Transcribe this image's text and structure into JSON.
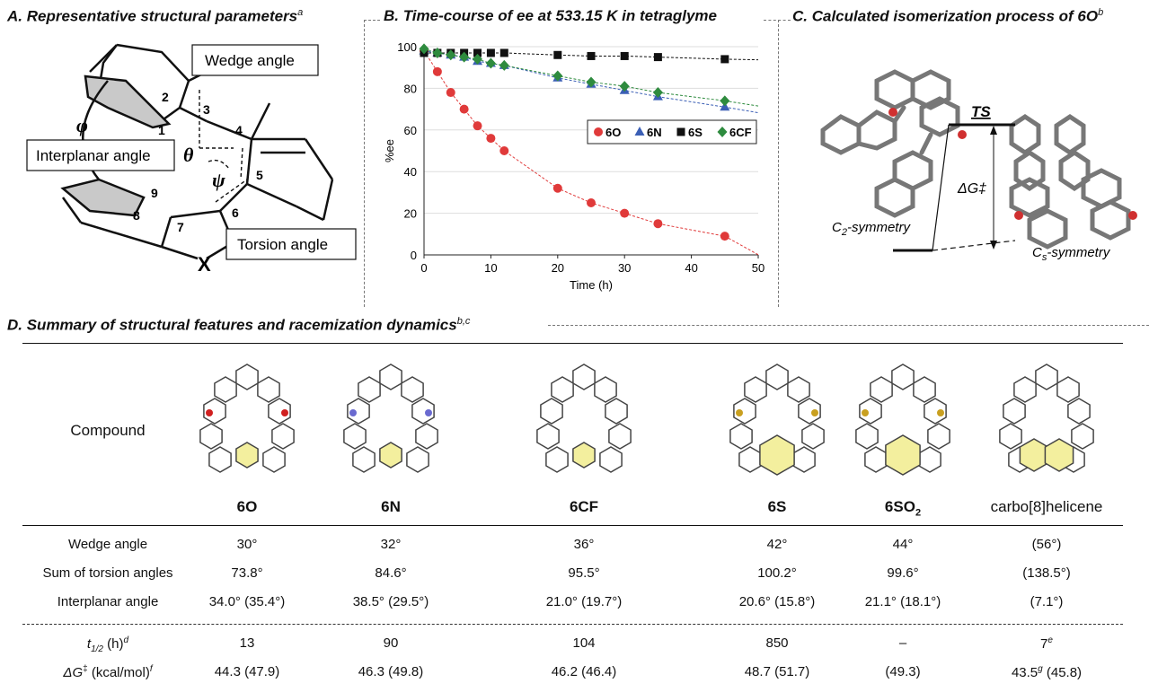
{
  "panels": {
    "A": {
      "title": "A. Representative structural parameters",
      "sup": "a",
      "labels": {
        "wedge": "Wedge angle",
        "interplanar": "Interplanar angle",
        "torsion": "Torsion angle"
      },
      "atoms": [
        "1",
        "2",
        "3",
        "4",
        "5",
        "6",
        "7",
        "8",
        "9"
      ],
      "greek": {
        "phi": "φ",
        "theta": "θ",
        "psi": "ψ"
      },
      "hetero": "X"
    },
    "B": {
      "title": "B. Time-course of ee at 533.15 K in tetraglyme"
    },
    "C": {
      "title": "C. Calculated isomerization process of 6O",
      "sup": "b",
      "ts": "TS",
      "dg": "ΔG‡",
      "c2": "C",
      "c2sub": "2",
      "c2suffix": "-symmetry",
      "cs": "C",
      "cssub": "s",
      "cssuffix": "-symmetry"
    },
    "D": {
      "title": "D. Summary of structural features and racemization dynamics",
      "sup": "b,c"
    }
  },
  "chart_data": {
    "type": "scatter",
    "title": "",
    "xlabel": "Time (h)",
    "ylabel": "%ee",
    "xlim": [
      0,
      50
    ],
    "ylim": [
      0,
      100
    ],
    "xticks": [
      0,
      10,
      20,
      30,
      40,
      50
    ],
    "yticks": [
      0,
      20,
      40,
      60,
      80,
      100
    ],
    "grid": "horizontal",
    "legend_position": "right",
    "series": [
      {
        "name": "6O",
        "marker": "circle",
        "color": "#e03a3a",
        "x": [
          0,
          2,
          4,
          6,
          8,
          10,
          12,
          20,
          25,
          30,
          35,
          45
        ],
        "y": [
          98,
          88,
          78,
          70,
          62,
          56,
          50,
          32,
          25,
          20,
          15,
          9
        ]
      },
      {
        "name": "6N",
        "marker": "triangle",
        "color": "#3b5fb5",
        "x": [
          0,
          2,
          4,
          6,
          8,
          10,
          12,
          20,
          25,
          30,
          35,
          45
        ],
        "y": [
          98,
          97,
          96,
          95,
          93,
          92,
          91,
          85,
          82,
          79,
          76,
          71
        ]
      },
      {
        "name": "6S",
        "marker": "square",
        "color": "#111111",
        "x": [
          0,
          2,
          4,
          6,
          8,
          10,
          12,
          20,
          25,
          30,
          35,
          45
        ],
        "y": [
          97,
          97,
          97,
          97,
          97,
          97,
          97,
          96,
          95.5,
          95.5,
          95,
          94
        ]
      },
      {
        "name": "6CF",
        "marker": "diamond",
        "color": "#2e8b3e",
        "x": [
          0,
          2,
          4,
          6,
          8,
          10,
          12,
          20,
          25,
          30,
          35,
          45
        ],
        "y": [
          99,
          97,
          96,
          95,
          94,
          92,
          91,
          86,
          83,
          81,
          78,
          74
        ]
      }
    ]
  },
  "table": {
    "compound_label": "Compound",
    "compounds": [
      "6O",
      "6N",
      "6CF",
      "6S",
      "6SO",
      "carbo[8]helicene"
    ],
    "so2_sub": "2",
    "rows": [
      {
        "label": "Wedge angle",
        "values": [
          "30°",
          "32°",
          "36°",
          "42°",
          "44°",
          "(56°)"
        ]
      },
      {
        "label": "Sum of torsion angles",
        "values": [
          "73.8°",
          "84.6°",
          "95.5°",
          "100.2°",
          "99.6°",
          "(138.5°)"
        ]
      },
      {
        "label": "Interplanar angle",
        "values": [
          "34.0° (35.4°)",
          "38.5° (29.5°)",
          "21.0° (19.7°)",
          "20.6° (15.8°)",
          "21.1° (18.1°)",
          "(7.1°)"
        ]
      }
    ],
    "t_half": {
      "label_main": "t",
      "label_sub": "1/2",
      "label_unit": " (h)",
      "label_sup": "d",
      "values": [
        "13",
        "90",
        "104",
        "850",
        "–",
        "7"
      ],
      "last_sup": "e"
    },
    "dg": {
      "label_main": "ΔG",
      "label_sup1": "‡",
      "label_unit": " (kcal/mol)",
      "label_sup": "f",
      "values": [
        "44.3 (47.9)",
        "46.3 (49.8)",
        "46.2 (46.4)",
        "48.7 (51.7)",
        "(49.3)",
        "43.5"
      ],
      "last_sup": "g",
      "last_extra": " (45.8)"
    }
  }
}
